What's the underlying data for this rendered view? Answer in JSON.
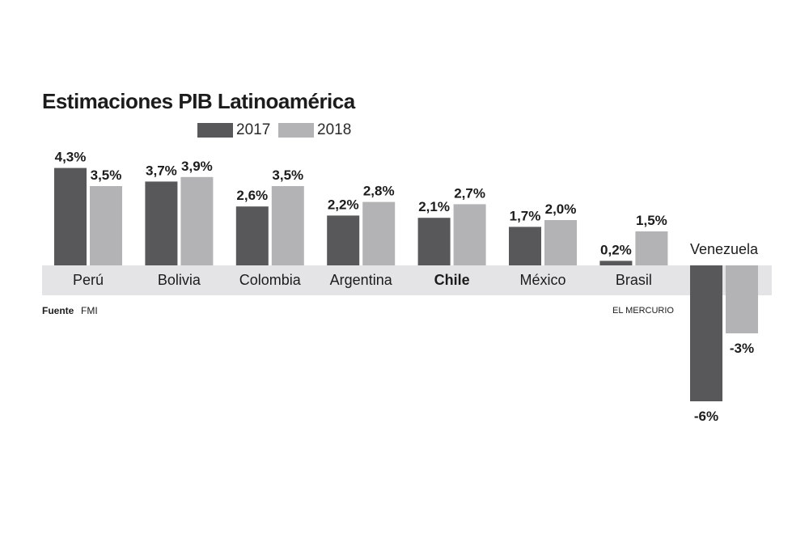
{
  "chart_data": {
    "type": "bar",
    "title": "Estimaciones PIB Latinoamérica",
    "categories": [
      "Perú",
      "Bolivia",
      "Colombia",
      "Argentina",
      "Chile",
      "México",
      "Brasil",
      "Venezuela"
    ],
    "highlight_category": "Chile",
    "series": [
      {
        "name": "2017",
        "color": "#58585a",
        "values": [
          4.3,
          3.7,
          2.6,
          2.2,
          2.1,
          1.7,
          0.2,
          -6
        ],
        "labels": [
          "4,3%",
          "3,7%",
          "2,6%",
          "2,2%",
          "2,1%",
          "1,7%",
          "0,2%",
          "-6%"
        ]
      },
      {
        "name": "2018",
        "color": "#b3b3b5",
        "values": [
          3.5,
          3.9,
          3.5,
          2.8,
          2.7,
          2.0,
          1.5,
          -3
        ],
        "labels": [
          "3,5%",
          "3,9%",
          "3,5%",
          "2,8%",
          "2,7%",
          "2,0%",
          "1,5%",
          "-3%"
        ]
      }
    ],
    "ylim": [
      -6,
      4.3
    ],
    "xlabel": "",
    "ylabel": "",
    "legend": "top-left",
    "grid": false
  },
  "legend": {
    "items": [
      {
        "label": "2017",
        "color": "#58585a"
      },
      {
        "label": "2018",
        "color": "#b3b3b5"
      }
    ]
  },
  "footer": {
    "source_label": "Fuente",
    "source_value": "FMI",
    "credit": "EL MERCURIO"
  },
  "colors": {
    "band": "#e4e4e6",
    "text": "#1c1c1c"
  }
}
